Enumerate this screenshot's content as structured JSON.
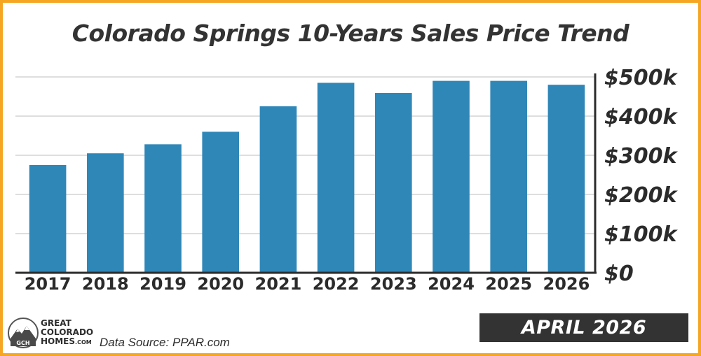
{
  "chart_data": {
    "type": "bar",
    "title": "Colorado Springs 10-Years Sales Price Trend",
    "categories": [
      "2017",
      "2018",
      "2019",
      "2020",
      "2021",
      "2022",
      "2023",
      "2024",
      "2025",
      "2026"
    ],
    "values": [
      275000,
      305000,
      328000,
      360000,
      425000,
      485000,
      459000,
      490000,
      490000,
      480000
    ],
    "ylim": [
      0,
      500000
    ],
    "yticks": [
      0,
      100000,
      200000,
      300000,
      400000,
      500000
    ],
    "ytick_labels": [
      "$0",
      "$100k",
      "$200k",
      "$300k",
      "$400k",
      "$500k"
    ],
    "axis_position": "right",
    "grid": true,
    "bar_color": "#2f87b8"
  },
  "footer": {
    "source": "Data Source: PPAR.com",
    "date_label": "APRIL 2026",
    "logo_line1": "GREAT",
    "logo_line2": "COLORADO",
    "logo_line3": "HOMES",
    "logo_suffix": ".COM",
    "logo_badge": "GCH"
  },
  "colors": {
    "border": "#f5a623",
    "bar": "#2f87b8",
    "date_box": "#333333"
  }
}
